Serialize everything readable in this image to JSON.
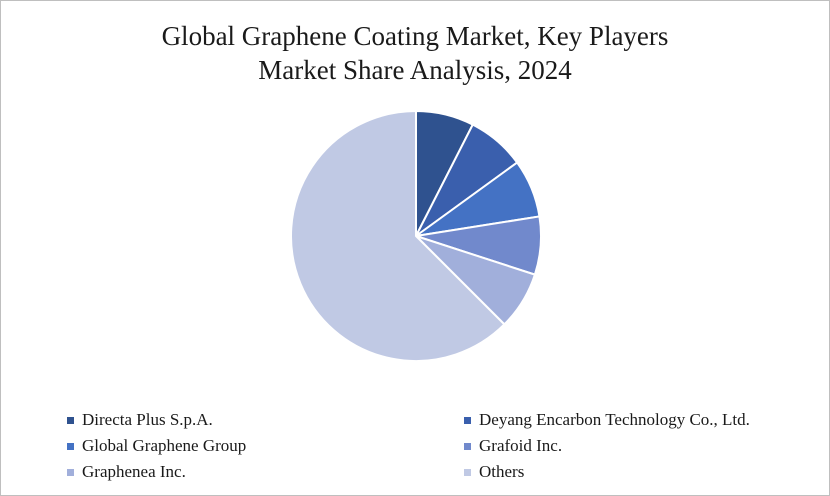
{
  "chart_data": {
    "type": "pie",
    "title_lines": [
      "Global Graphene Coating Market, Key Players",
      "Market Share Analysis, 2024"
    ],
    "categories": [
      "Directa Plus S.p.A.",
      "Deyang Encarbon Technology Co., Ltd.",
      "Global Graphene Group",
      "Grafoid Inc.",
      "Graphenea Inc.",
      "Others"
    ],
    "values": [
      7.5,
      7.5,
      7.5,
      7.5,
      7.5,
      62.5
    ],
    "colors": [
      "#2f528f",
      "#3a5fad",
      "#4472c4",
      "#7189cc",
      "#a1afdb",
      "#c0c9e4"
    ],
    "legend_position": "bottom",
    "start_angle_deg": 0,
    "direction": "clockwise"
  }
}
